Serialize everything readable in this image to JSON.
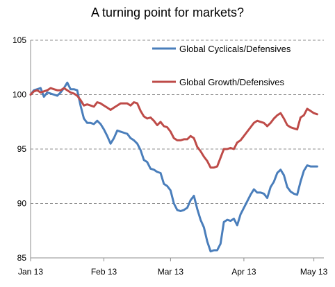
{
  "chart_data": {
    "type": "line",
    "title": "A turning point for markets?",
    "xlabel": "",
    "ylabel": "",
    "ylim": [
      85,
      105
    ],
    "yticks": [
      85,
      90,
      95,
      100,
      105
    ],
    "xticks": [
      {
        "label": "Jan 13",
        "x": 0
      },
      {
        "label": "Feb 13",
        "x": 22
      },
      {
        "label": "Mar 13",
        "x": 42
      },
      {
        "label": "Apr 13",
        "x": 64
      },
      {
        "label": "May 13",
        "x": 85
      }
    ],
    "grid": "horizontal-dashed",
    "legend_position": "top-right",
    "series": [
      {
        "name": "Global Cyclicals/Defensives",
        "color": "#4a7ebb",
        "points": [
          [
            0,
            100.0
          ],
          [
            1,
            100.4
          ],
          [
            2,
            100.5
          ],
          [
            3,
            100.6
          ],
          [
            4,
            99.8
          ],
          [
            5,
            100.2
          ],
          [
            6,
            100.1
          ],
          [
            7,
            100.0
          ],
          [
            8,
            99.9
          ],
          [
            9,
            100.2
          ],
          [
            10,
            100.6
          ],
          [
            11,
            101.1
          ],
          [
            12,
            100.5
          ],
          [
            13,
            100.5
          ],
          [
            14,
            100.4
          ],
          [
            15,
            99.0
          ],
          [
            16,
            97.8
          ],
          [
            17,
            97.4
          ],
          [
            18,
            97.4
          ],
          [
            19,
            97.3
          ],
          [
            20,
            97.6
          ],
          [
            21,
            97.3
          ],
          [
            22,
            96.8
          ],
          [
            23,
            96.2
          ],
          [
            24,
            95.5
          ],
          [
            25,
            96.0
          ],
          [
            26,
            96.7
          ],
          [
            27,
            96.6
          ],
          [
            28,
            96.5
          ],
          [
            29,
            96.4
          ],
          [
            30,
            96.0
          ],
          [
            31,
            95.8
          ],
          [
            32,
            95.5
          ],
          [
            33,
            94.9
          ],
          [
            34,
            94.0
          ],
          [
            35,
            93.8
          ],
          [
            36,
            93.2
          ],
          [
            37,
            93.1
          ],
          [
            38,
            92.9
          ],
          [
            39,
            92.8
          ],
          [
            40,
            91.8
          ],
          [
            41,
            91.6
          ],
          [
            42,
            91.2
          ],
          [
            43,
            90.0
          ],
          [
            44,
            89.4
          ],
          [
            45,
            89.3
          ],
          [
            46,
            89.4
          ],
          [
            47,
            89.6
          ],
          [
            48,
            90.3
          ],
          [
            49,
            90.7
          ],
          [
            50,
            89.5
          ],
          [
            51,
            88.5
          ],
          [
            52,
            87.8
          ],
          [
            53,
            86.5
          ],
          [
            54,
            85.6
          ],
          [
            55,
            85.7
          ],
          [
            56,
            85.7
          ],
          [
            57,
            86.3
          ],
          [
            58,
            88.3
          ],
          [
            59,
            88.5
          ],
          [
            60,
            88.4
          ],
          [
            61,
            88.6
          ],
          [
            62,
            88.0
          ],
          [
            63,
            89.0
          ],
          [
            64,
            89.6
          ],
          [
            65,
            90.2
          ],
          [
            66,
            90.8
          ],
          [
            67,
            91.3
          ],
          [
            68,
            91.0
          ],
          [
            69,
            91.0
          ],
          [
            70,
            90.9
          ],
          [
            71,
            90.5
          ],
          [
            72,
            91.5
          ],
          [
            73,
            92.0
          ],
          [
            74,
            92.8
          ],
          [
            75,
            93.1
          ],
          [
            76,
            92.6
          ],
          [
            77,
            91.5
          ],
          [
            78,
            91.1
          ],
          [
            79,
            90.9
          ],
          [
            80,
            90.8
          ],
          [
            81,
            92.0
          ],
          [
            82,
            93.0
          ],
          [
            83,
            93.5
          ],
          [
            84,
            93.4
          ],
          [
            85,
            93.4
          ],
          [
            86,
            93.4
          ]
        ]
      },
      {
        "name": "Global Growth/Defensives",
        "color": "#be4b48",
        "points": [
          [
            0,
            100.0
          ],
          [
            1,
            100.3
          ],
          [
            2,
            100.4
          ],
          [
            3,
            100.2
          ],
          [
            4,
            100.3
          ],
          [
            5,
            100.4
          ],
          [
            6,
            100.6
          ],
          [
            7,
            100.5
          ],
          [
            8,
            100.4
          ],
          [
            9,
            100.4
          ],
          [
            10,
            100.6
          ],
          [
            11,
            100.4
          ],
          [
            12,
            100.2
          ],
          [
            13,
            100.1
          ],
          [
            14,
            99.9
          ],
          [
            15,
            99.5
          ],
          [
            16,
            99.0
          ],
          [
            17,
            99.1
          ],
          [
            18,
            99.0
          ],
          [
            19,
            98.9
          ],
          [
            20,
            99.3
          ],
          [
            21,
            99.2
          ],
          [
            22,
            99.0
          ],
          [
            23,
            98.8
          ],
          [
            24,
            98.6
          ],
          [
            25,
            98.8
          ],
          [
            26,
            99.0
          ],
          [
            27,
            99.2
          ],
          [
            28,
            99.2
          ],
          [
            29,
            99.2
          ],
          [
            30,
            99.0
          ],
          [
            31,
            99.3
          ],
          [
            32,
            99.2
          ],
          [
            33,
            98.5
          ],
          [
            34,
            98.0
          ],
          [
            35,
            97.8
          ],
          [
            36,
            97.9
          ],
          [
            37,
            97.6
          ],
          [
            38,
            97.2
          ],
          [
            39,
            97.5
          ],
          [
            40,
            97.1
          ],
          [
            41,
            97.0
          ],
          [
            42,
            96.6
          ],
          [
            43,
            96.0
          ],
          [
            44,
            95.8
          ],
          [
            45,
            95.8
          ],
          [
            46,
            95.9
          ],
          [
            47,
            95.9
          ],
          [
            48,
            96.2
          ],
          [
            49,
            96.0
          ],
          [
            50,
            95.2
          ],
          [
            51,
            94.8
          ],
          [
            52,
            94.3
          ],
          [
            53,
            93.9
          ],
          [
            54,
            93.3
          ],
          [
            55,
            93.3
          ],
          [
            56,
            93.4
          ],
          [
            57,
            94.2
          ],
          [
            58,
            95.0
          ],
          [
            59,
            95.0
          ],
          [
            60,
            95.1
          ],
          [
            61,
            95.0
          ],
          [
            62,
            95.6
          ],
          [
            63,
            95.8
          ],
          [
            64,
            96.2
          ],
          [
            65,
            96.6
          ],
          [
            66,
            97.0
          ],
          [
            67,
            97.4
          ],
          [
            68,
            97.6
          ],
          [
            69,
            97.5
          ],
          [
            70,
            97.4
          ],
          [
            71,
            97.1
          ],
          [
            72,
            97.4
          ],
          [
            73,
            97.8
          ],
          [
            74,
            98.1
          ],
          [
            75,
            98.3
          ],
          [
            76,
            97.8
          ],
          [
            77,
            97.2
          ],
          [
            78,
            97.0
          ],
          [
            79,
            96.9
          ],
          [
            80,
            96.8
          ],
          [
            81,
            97.9
          ],
          [
            82,
            98.1
          ],
          [
            83,
            98.7
          ],
          [
            84,
            98.5
          ],
          [
            85,
            98.3
          ],
          [
            86,
            98.2
          ]
        ]
      }
    ]
  }
}
